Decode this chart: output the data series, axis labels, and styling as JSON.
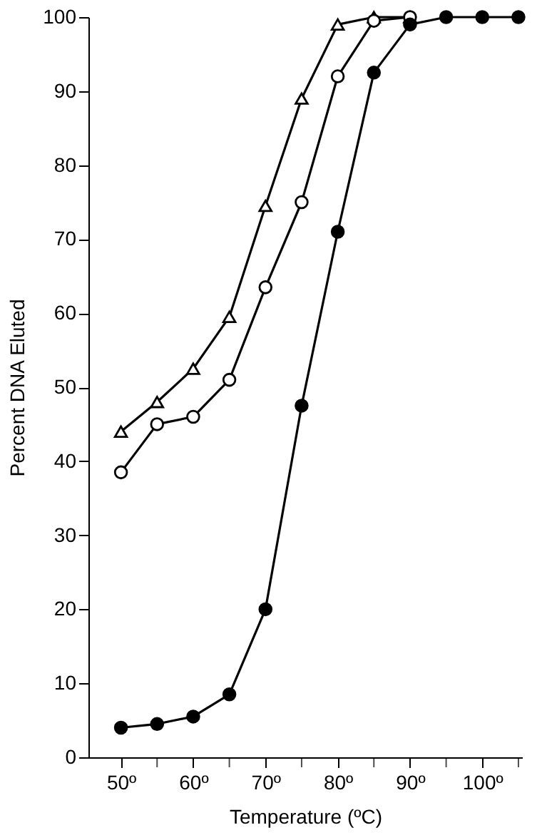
{
  "chart_data": {
    "type": "line",
    "xlabel": "Temperature (ºC)",
    "ylabel": "Percent DNA Eluted",
    "xlim": [
      45.5,
      105.5
    ],
    "xticks": [
      {
        "value": 50,
        "label": "50º"
      },
      {
        "value": 55,
        "label": null
      },
      {
        "value": 60,
        "label": "60º"
      },
      {
        "value": 65,
        "label": null
      },
      {
        "value": 70,
        "label": "70º"
      },
      {
        "value": 75,
        "label": null
      },
      {
        "value": 80,
        "label": "80º"
      },
      {
        "value": 85,
        "label": null
      },
      {
        "value": 90,
        "label": "90º"
      },
      {
        "value": 95,
        "label": null
      },
      {
        "value": 100,
        "label": "100º"
      },
      {
        "value": 105,
        "label": null
      }
    ],
    "ylim": [
      0,
      100
    ],
    "yticks": [
      0,
      10,
      20,
      30,
      40,
      50,
      60,
      70,
      80,
      90,
      100
    ],
    "grid": false,
    "line_style": "solid",
    "series": [
      {
        "color": "#000000",
        "marker": "triangle-open",
        "x": [
          50,
          55,
          60,
          65,
          70,
          75,
          80,
          85,
          90
        ],
        "values": [
          44,
          48,
          52.5,
          59.5,
          74.5,
          89,
          99,
          100,
          100
        ]
      },
      {
        "color": "#000000",
        "marker": "circle-open",
        "x": [
          50,
          55,
          60,
          65,
          70,
          75,
          80,
          85,
          90
        ],
        "values": [
          38.5,
          45,
          46,
          51,
          63.5,
          75,
          92,
          99.5,
          100
        ]
      },
      {
        "color": "#000000",
        "marker": "circle",
        "x": [
          50,
          55,
          60,
          65,
          70,
          75,
          80,
          85,
          90,
          95,
          100,
          105
        ],
        "values": [
          4,
          4.5,
          5.5,
          8.5,
          20,
          47.5,
          71,
          92.5,
          99,
          100,
          100,
          100
        ]
      }
    ]
  }
}
